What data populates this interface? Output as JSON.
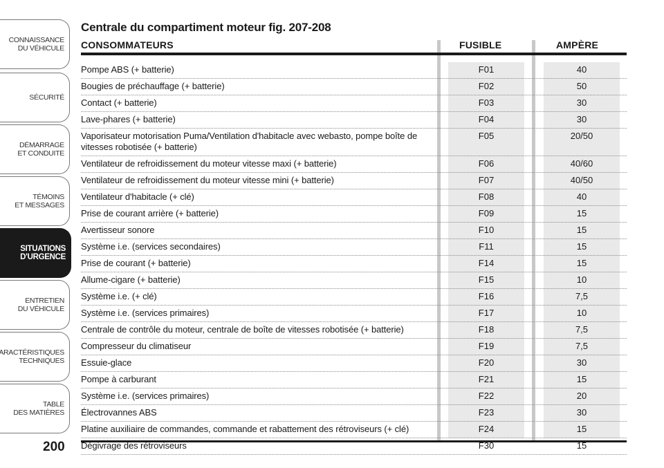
{
  "sidebar": {
    "tabs": [
      {
        "label": "CONNAISSANCE\nDU VÉHICULE",
        "active": false
      },
      {
        "label": "SÉCURITÉ",
        "active": false
      },
      {
        "label": "DÉMARRAGE\nET CONDUITE",
        "active": false
      },
      {
        "label": "TÉMOINS\nET MESSAGES",
        "active": false
      },
      {
        "label": "SITUATIONS\nD'URGENCE",
        "active": true
      },
      {
        "label": "ENTRETIEN\nDU VÉHICULE",
        "active": false
      },
      {
        "label": "CARACTÉRISTIQUES\nTECHNIQUES",
        "active": false
      },
      {
        "label": "TABLE\nDES MATIÈRES",
        "active": false
      }
    ],
    "page_number": "200"
  },
  "main": {
    "title": "Centrale du compartiment moteur fig. 207-208",
    "headers": {
      "consommateurs": "CONSOMMATEURS",
      "fusible": "FUSIBLE",
      "ampere": "AMPÈRE"
    },
    "rows": [
      {
        "desc": "Pompe ABS (+ batterie)",
        "fus": "F01",
        "amp": "40"
      },
      {
        "desc": "Bougies de préchauffage (+ batterie)",
        "fus": "F02",
        "amp": "50"
      },
      {
        "desc": "Contact (+ batterie)",
        "fus": "F03",
        "amp": "30"
      },
      {
        "desc": "Lave-phares (+ batterie)",
        "fus": "F04",
        "amp": "30"
      },
      {
        "desc": "Vaporisateur motorisation Puma/Ventilation d'habitacle avec webasto, pompe boîte de vitesses robotisée (+ batterie)",
        "fus": "F05",
        "amp": "20/50",
        "tall": true
      },
      {
        "desc": "Ventilateur de refroidissement du moteur vitesse maxi (+ batterie)",
        "fus": "F06",
        "amp": "40/60"
      },
      {
        "desc": "Ventilateur de refroidissement du moteur vitesse mini (+ batterie)",
        "fus": "F07",
        "amp": "40/50"
      },
      {
        "desc": "Ventilateur d'habitacle (+ clé)",
        "fus": "F08",
        "amp": "40"
      },
      {
        "desc": "Prise de courant arrière (+ batterie)",
        "fus": "F09",
        "amp": "15"
      },
      {
        "desc": "Avertisseur sonore",
        "fus": "F10",
        "amp": "15"
      },
      {
        "desc": "Système i.e. (services secondaires)",
        "fus": "F11",
        "amp": "15"
      },
      {
        "desc": "Prise de courant (+ batterie)",
        "fus": "F14",
        "amp": "15"
      },
      {
        "desc": "Allume-cigare (+ batterie)",
        "fus": "F15",
        "amp": "10"
      },
      {
        "desc": "Système i.e. (+ clé)",
        "fus": "F16",
        "amp": "7,5"
      },
      {
        "desc": "Système i.e. (services primaires)",
        "fus": "F17",
        "amp": "10"
      },
      {
        "desc": "Centrale de contrôle du moteur, centrale de boîte de vitesses robotisée (+ batterie)",
        "fus": "F18",
        "amp": "7,5"
      },
      {
        "desc": "Compresseur du climatiseur",
        "fus": "F19",
        "amp": "7,5"
      },
      {
        "desc": "Essuie-glace",
        "fus": "F20",
        "amp": "30"
      },
      {
        "desc": "Pompe à carburant",
        "fus": "F21",
        "amp": "15"
      },
      {
        "desc": "Système i.e. (services primaires)",
        "fus": "F22",
        "amp": "20"
      },
      {
        "desc": "Électrovannes ABS",
        "fus": "F23",
        "amp": "30"
      },
      {
        "desc": "Platine auxiliaire de commandes, commande et rabattement des rétroviseurs (+ clé)",
        "fus": "F24",
        "amp": "15"
      },
      {
        "desc": "Dégivrage des rétroviseurs",
        "fus": "F30",
        "amp": "15"
      }
    ]
  }
}
